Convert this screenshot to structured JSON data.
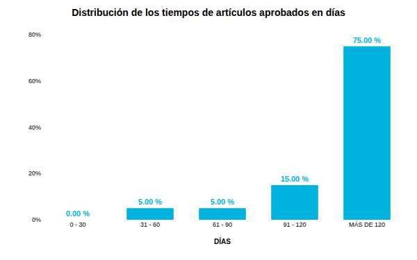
{
  "chart_data": {
    "type": "bar",
    "title": "Distribución de los tiempos de artículos aprobados en días",
    "x_label": "DÍAS",
    "categories": [
      "0 - 30",
      "31 - 60",
      "61 - 90",
      "91 - 120",
      "MÁS DE 120"
    ],
    "values": [
      0,
      5,
      5,
      15,
      75
    ],
    "value_labels": [
      "0.00 %",
      "5.00 %",
      "5.00 %",
      "15.00 %",
      "75.00 %"
    ],
    "color": "#00b2de",
    "ylim": [
      0,
      80
    ],
    "yticks": [
      {
        "value": 0,
        "label": "0%"
      },
      {
        "value": 20,
        "label": "20%"
      },
      {
        "value": 40,
        "label": "40%"
      },
      {
        "value": 60,
        "label": "60%"
      },
      {
        "value": 80,
        "label": "80%"
      }
    ],
    "grid": false,
    "data_labels": true
  }
}
